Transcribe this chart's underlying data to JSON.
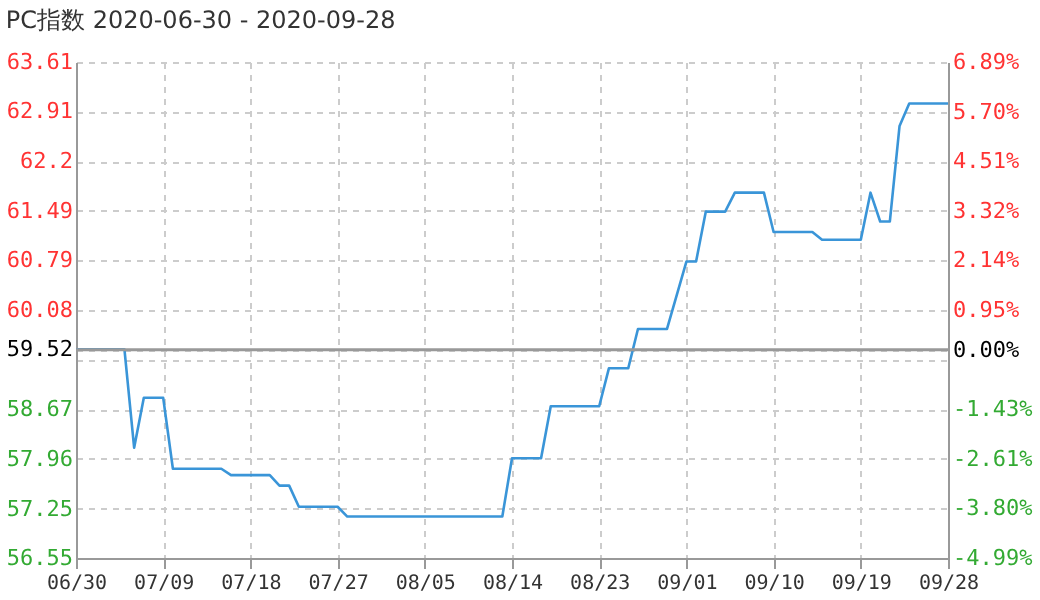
{
  "chart_data": {
    "type": "line",
    "title": "PC指数 2020-06-30 - 2020-09-28",
    "x": [
      "2020-06-30",
      "2020-07-05",
      "2020-07-06",
      "2020-07-07",
      "2020-07-09",
      "2020-07-10",
      "2020-07-15",
      "2020-07-16",
      "2020-07-20",
      "2020-07-21",
      "2020-07-22",
      "2020-07-23",
      "2020-07-27",
      "2020-07-28",
      "2020-08-13",
      "2020-08-14",
      "2020-08-17",
      "2020-08-18",
      "2020-08-23",
      "2020-08-24",
      "2020-08-26",
      "2020-08-27",
      "2020-08-30",
      "2020-09-01",
      "2020-09-02",
      "2020-09-03",
      "2020-09-05",
      "2020-09-06",
      "2020-09-09",
      "2020-09-10",
      "2020-09-14",
      "2020-09-15",
      "2020-09-19",
      "2020-09-20",
      "2020-09-21",
      "2020-09-22",
      "2020-09-23",
      "2020-09-24",
      "2020-09-28"
    ],
    "series": [
      {
        "color": "#3a95d8",
        "values": [
          59.52,
          59.52,
          58.12,
          58.83,
          58.83,
          57.82,
          57.82,
          57.73,
          57.73,
          57.58,
          57.58,
          57.28,
          57.28,
          57.14,
          57.14,
          57.97,
          57.97,
          58.71,
          58.71,
          59.25,
          59.25,
          59.81,
          59.81,
          60.77,
          60.77,
          61.48,
          61.48,
          61.75,
          61.75,
          61.19,
          61.19,
          61.08,
          61.08,
          61.75,
          61.34,
          61.34,
          62.7,
          63.02,
          63.02
        ]
      }
    ],
    "xlim": [
      "2020-06-30",
      "2020-09-28"
    ],
    "xticks": [
      {
        "value": "2020-06-30",
        "label": "06/30"
      },
      {
        "value": "2020-07-09",
        "label": "07/09"
      },
      {
        "value": "2020-07-18",
        "label": "07/18"
      },
      {
        "value": "2020-07-27",
        "label": "07/27"
      },
      {
        "value": "2020-08-05",
        "label": "08/05"
      },
      {
        "value": "2020-08-14",
        "label": "08/14"
      },
      {
        "value": "2020-08-23",
        "label": "08/23"
      },
      {
        "value": "2020-09-01",
        "label": "09/01"
      },
      {
        "value": "2020-09-10",
        "label": "09/10"
      },
      {
        "value": "2020-09-19",
        "label": "09/19"
      },
      {
        "value": "2020-09-28",
        "label": "09/28"
      }
    ],
    "ylim": [
      56.55,
      63.61
    ],
    "yticks": [
      56.55,
      57.25,
      57.96,
      58.67,
      {
        "value": 59.37,
        "label": null
      },
      59.52,
      60.08,
      60.79,
      61.49,
      62.2,
      62.91,
      63.61
    ],
    "y2lim": [
      -4.99,
      6.89
    ],
    "y2ticks": [
      {
        "value": -4.99,
        "label": "-4.99%"
      },
      {
        "value": -3.8,
        "label": "-3.80%"
      },
      {
        "value": -2.61,
        "label": "-2.61%"
      },
      {
        "value": -1.43,
        "label": "-1.43%"
      },
      {
        "value": 0,
        "label": "0.00%"
      },
      {
        "value": 0.95,
        "label": "0.95%"
      },
      {
        "value": 2.14,
        "label": "2.14%"
      },
      {
        "value": 3.32,
        "label": "3.32%"
      },
      {
        "value": 4.51,
        "label": "4.51%"
      },
      {
        "value": 5.7,
        "label": "5.70%"
      },
      {
        "value": 6.89,
        "label": "6.89%"
      }
    ],
    "ref_lines": [
      {
        "axis": "y2",
        "value": 0,
        "color": "#999999"
      }
    ],
    "grid": true,
    "legend": false,
    "marker": "none",
    "line_style": "solid"
  }
}
